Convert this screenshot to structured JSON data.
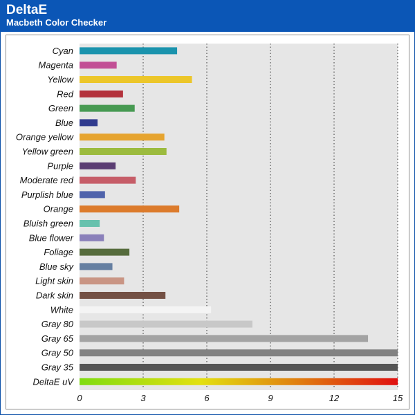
{
  "header": {
    "title": "DeltaE",
    "subtitle": "Macbeth Color Checker"
  },
  "chart_data": {
    "type": "bar",
    "orientation": "horizontal",
    "title": "DeltaE",
    "subtitle": "Macbeth Color Checker",
    "xlabel": "",
    "ylabel": "",
    "xlim": [
      0,
      15
    ],
    "xticks": [
      0,
      3,
      6,
      9,
      12,
      15
    ],
    "grid": true,
    "categories": [
      "Cyan",
      "Magenta",
      "Yellow",
      "Red",
      "Green",
      "Blue",
      "Orange yellow",
      "Yellow green",
      "Purple",
      "Moderate red",
      "Purplish blue",
      "Orange",
      "Bluish green",
      "Blue flower",
      "Foliage",
      "Blue sky",
      "Light skin",
      "Dark skin",
      "White",
      "Gray 80",
      "Gray 65",
      "Gray 50",
      "Gray 35",
      "DeltaE uV"
    ],
    "values": [
      4.6,
      1.75,
      5.3,
      2.05,
      2.6,
      0.85,
      4.0,
      4.1,
      1.7,
      2.65,
      1.2,
      4.7,
      0.95,
      1.15,
      2.35,
      1.55,
      2.1,
      4.05,
      6.2,
      8.15,
      13.6,
      15.0,
      15.0,
      15.0
    ],
    "colors": [
      "#1a93ad",
      "#c24f95",
      "#ecc62a",
      "#b3323c",
      "#479a52",
      "#303b8e",
      "#e6a42f",
      "#9cbb3f",
      "#5b3d73",
      "#c65d68",
      "#4f63ab",
      "#dc7b2c",
      "#67c1ad",
      "#8a80ba",
      "#566c3d",
      "#657fa1",
      "#c99584",
      "#735044",
      "#f4f4f4",
      "#c8c8c8",
      "#a3a3a3",
      "#828282",
      "#555555",
      "gradient"
    ],
    "gradient_stops": [
      "#7fdc10",
      "#e3e010",
      "#e07a10",
      "#e01010"
    ]
  }
}
